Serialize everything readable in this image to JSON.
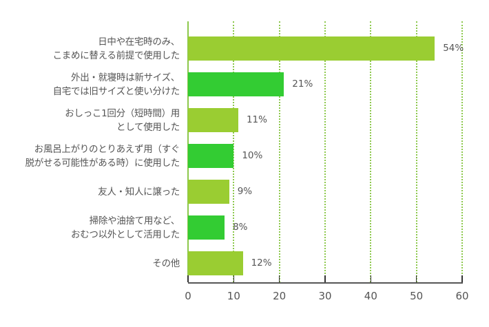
{
  "chart_data": {
    "type": "bar",
    "orientation": "horizontal",
    "title": "",
    "xlabel": "",
    "ylabel": "",
    "xlim": [
      0,
      60
    ],
    "x_ticks": [
      0,
      10,
      20,
      30,
      40,
      50,
      60
    ],
    "grid": "vertical dotted",
    "legend": "none",
    "categories": [
      "日中や在宅時のみ、こまめに替える前提で使用した",
      "外出・就寝時は新サイズ、自宅では旧サイズと使い分けた",
      "おしっこ1回分（短時間）用として使用した",
      "お風呂上がりのとりあえず用（すぐ脱がせる可能性がある時）に使用した",
      "友人・知人に譲った",
      "掃除や油捨て用など、おむつ以外として活用した",
      "その他"
    ],
    "values": [
      54,
      21,
      11,
      10,
      9,
      8,
      12
    ],
    "value_labels": [
      "54%",
      "21%",
      "11%",
      "10%",
      "9%",
      "8%",
      "12%"
    ],
    "colors": [
      "#9acd32",
      "#33cc33",
      "#9acd32",
      "#33cc33",
      "#9acd32",
      "#33cc33",
      "#9acd32"
    ]
  },
  "labels": [
    [
      "日中や在宅時のみ、",
      "こまめに替える前提で使用した"
    ],
    [
      "外出・就寝時は新サイズ、",
      "自宅では旧サイズと使い分けた"
    ],
    [
      "おしっこ1回分（短時間）用",
      "として使用した"
    ],
    [
      "お風呂上がりのとりあえず用（すぐ",
      "脱がせる可能性がある時）に使用した"
    ],
    [
      "友人・知人に譲った"
    ],
    [
      "掃除や油捨て用など、",
      "おむつ以外として活用した"
    ],
    [
      "その他"
    ]
  ],
  "tick_labels": [
    "0",
    "10",
    "20",
    "30",
    "40",
    "50",
    "60"
  ],
  "colors": {
    "light_green": "#9acd32",
    "green": "#33cc33",
    "grid": "#8cc84b",
    "text": "#555555"
  }
}
